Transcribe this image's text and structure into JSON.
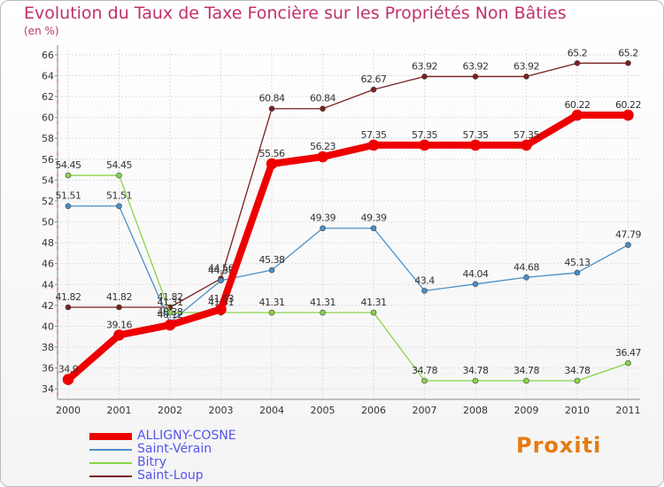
{
  "title": "Evolution du Taux de Taxe Foncière sur les Propriétés Non Bâties",
  "unit": "(en %)",
  "logo": "Proxiti",
  "chart_data": {
    "type": "line",
    "x": [
      "2000",
      "2001",
      "2002",
      "2003",
      "2004",
      "2005",
      "2006",
      "2007",
      "2008",
      "2009",
      "2010",
      "2011"
    ],
    "ylim": [
      33,
      66.5
    ],
    "yticks": [
      34,
      36,
      38,
      40,
      42,
      44,
      46,
      48,
      50,
      52,
      54,
      56,
      58,
      60,
      62,
      64,
      66
    ],
    "grid": true,
    "series": [
      {
        "name": "Saint-Loup",
        "color": "#7a2020",
        "width": 1.3,
        "values": [
          41.82,
          41.82,
          41.82,
          44.56,
          60.84,
          60.84,
          62.67,
          63.92,
          63.92,
          63.92,
          65.2,
          65.2
        ],
        "labels": [
          "41.82",
          "41.82",
          "41.82",
          "44.56",
          "60.84",
          "60.84",
          "62.67",
          "63.92",
          "63.92",
          "63.92",
          "65.2",
          "65.2"
        ]
      },
      {
        "name": "Saint-Vérain",
        "color": "#4a8ec6",
        "width": 1.3,
        "values": [
          51.51,
          51.51,
          40.38,
          44.38,
          45.38,
          49.39,
          49.39,
          43.4,
          44.04,
          44.68,
          45.13,
          47.79
        ],
        "labels": [
          "51.51",
          "51.51",
          "40.38",
          "44.38",
          "45.38",
          "49.39",
          "49.39",
          "43.4",
          "44.04",
          "44.68",
          "45.13",
          "47.79"
        ]
      },
      {
        "name": "Bitry",
        "color": "#88d448",
        "width": 1.3,
        "values": [
          54.45,
          54.45,
          41.31,
          41.31,
          41.31,
          41.31,
          41.31,
          34.78,
          34.78,
          34.78,
          34.78,
          36.47
        ],
        "labels": [
          "54.45",
          "54.45",
          "41.31",
          "41.31",
          "41.31",
          "41.31",
          "41.31",
          "34.78",
          "34.78",
          "34.78",
          "34.78",
          "36.47"
        ]
      },
      {
        "name": "ALLIGNY-COSNE",
        "color": "#ee0000",
        "width": 8,
        "values": [
          34.9,
          39.16,
          40.12,
          41.63,
          55.56,
          56.23,
          57.35,
          57.35,
          57.35,
          57.35,
          60.22,
          60.22
        ],
        "labels": [
          "34.9",
          "39.16",
          "40.12",
          "41.63",
          "55.56",
          "56.23",
          "57.35",
          "57.35",
          "57.35",
          "57.35",
          "60.22",
          "60.22"
        ]
      }
    ]
  },
  "legend": [
    {
      "name": "ALLIGNY-COSNE",
      "color": "#ee0000"
    },
    {
      "name": "Saint-Vérain",
      "color": "#4a8ec6"
    },
    {
      "name": "Bitry",
      "color": "#88d448"
    },
    {
      "name": "Saint-Loup",
      "color": "#7a2020"
    }
  ]
}
